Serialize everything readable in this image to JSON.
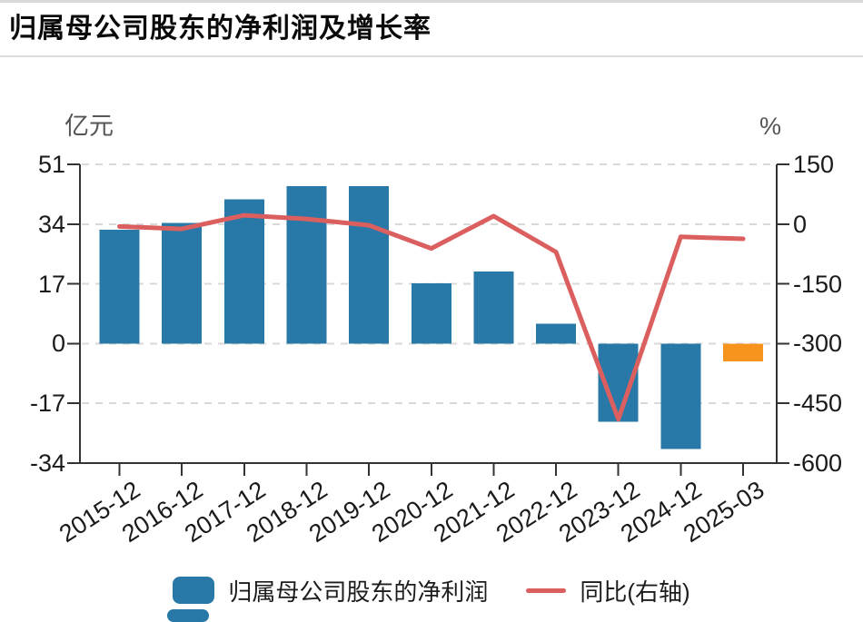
{
  "page": {
    "title": "归属母公司股东的净利润及增长率"
  },
  "legend": {
    "items": [
      {
        "label": "归属母公司股东的净利润",
        "type": "bar",
        "color": "#2879A7"
      },
      {
        "label": "同比(右轴)",
        "type": "line",
        "color": "#DB5F5F"
      }
    ]
  },
  "chart_data": {
    "type": "bar",
    "title": "归属母公司股东的净利润及增长率",
    "categories": [
      "2015-12",
      "2016-12",
      "2017-12",
      "2018-12",
      "2019-12",
      "2020-12",
      "2021-12",
      "2022-12",
      "2023-12",
      "2024-12",
      "2025-03"
    ],
    "series": [
      {
        "name": "归属母公司股东的净利润",
        "type": "bar",
        "yaxis": "left",
        "unit": "亿元",
        "values": [
          32.4,
          34.3,
          41,
          44.8,
          44.8,
          17.2,
          20.5,
          5.7,
          -22.3,
          -30,
          -5
        ]
      },
      {
        "name": "同比(右轴)",
        "type": "line",
        "yaxis": "right",
        "unit": "%",
        "values": [
          -6,
          -12,
          22,
          13,
          -3,
          -61,
          20,
          -70,
          -490,
          -32,
          -37
        ]
      }
    ],
    "left_axis": {
      "label": "亿元",
      "min": -34,
      "max": 51,
      "ticks": [
        51,
        34,
        17,
        0,
        -17,
        -34
      ]
    },
    "right_axis": {
      "label": "%",
      "min": -600,
      "max": 150,
      "ticks": [
        150,
        0,
        -150,
        -300,
        -450,
        -600
      ]
    },
    "grid": {
      "horizontal_dashed": true
    },
    "legend_position": "bottom",
    "colors": {
      "bar": "#2879A7",
      "last_bar": "#F7941E",
      "line": "#DB5F5F",
      "axis": "#333333",
      "grid": "#d9d9d9",
      "tick_label": "#1a1a1a",
      "axis_unit": "#555555"
    }
  }
}
